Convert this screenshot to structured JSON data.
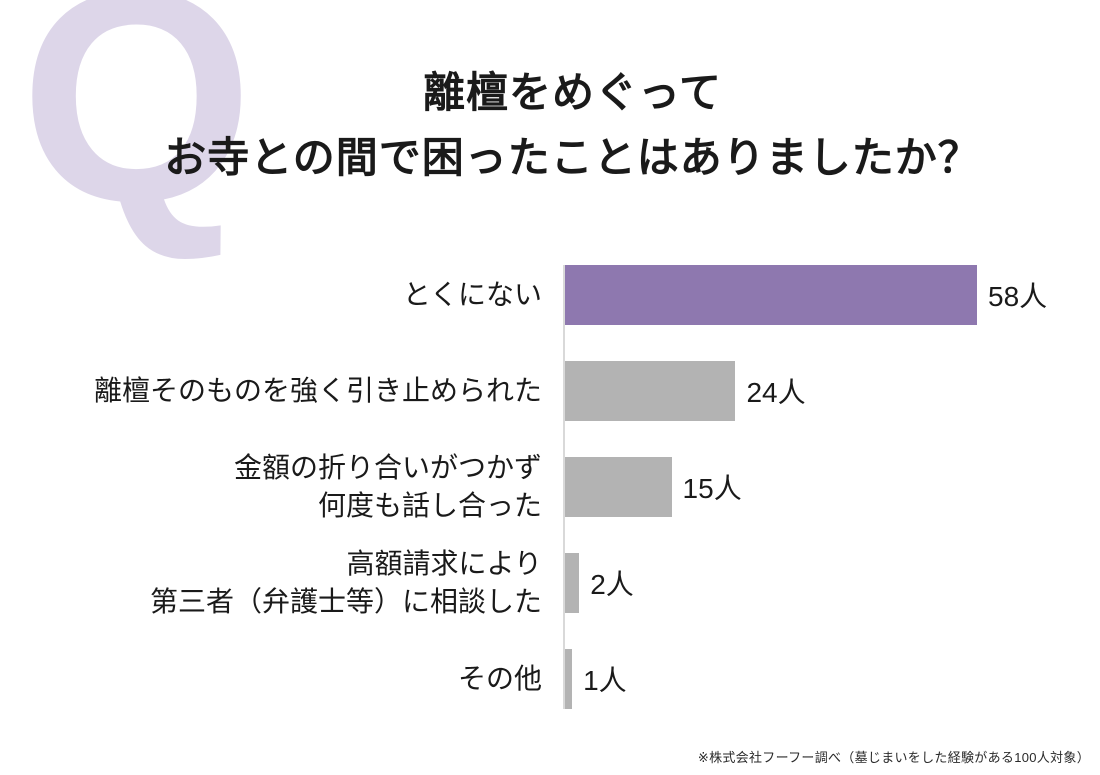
{
  "q_mark": "Q",
  "title": {
    "line1": "離檀をめぐって",
    "line2": "お寺との間で困ったことはありましたか？"
  },
  "footnote": "※株式会社フーフー調べ（墓じまいをした経験がある100人対象）",
  "colors": {
    "highlight_bar": "#8e78af",
    "default_bar": "#b3b3b3",
    "q_letter": "#ddd6e9",
    "axis_line": "#d9d9d9",
    "text": "#1a1a1a"
  },
  "chart_data": {
    "type": "bar",
    "orientation": "horizontal",
    "title": "離檀をめぐって お寺との間で困ったことはありましたか？",
    "unit": "人",
    "categories": [
      "とくにない",
      "離檀そのものを強く引き止められた",
      "金額の折り合いがつかず何度も話し合った",
      "高額請求により第三者（弁護士等）に相談した",
      "その他"
    ],
    "category_lines": [
      [
        "とくにない"
      ],
      [
        "離檀そのものを強く引き止められた"
      ],
      [
        "金額の折り合いがつかず",
        "何度も話し合った"
      ],
      [
        "高額請求により",
        "第三者（弁護士等）に相談した"
      ],
      [
        "その他"
      ]
    ],
    "values": [
      58,
      24,
      15,
      2,
      1
    ],
    "value_labels": [
      "58人",
      "24人",
      "15人",
      "2人",
      "1人"
    ],
    "highlight_index": 0,
    "xmax": 58,
    "grid": false,
    "legend": false
  }
}
